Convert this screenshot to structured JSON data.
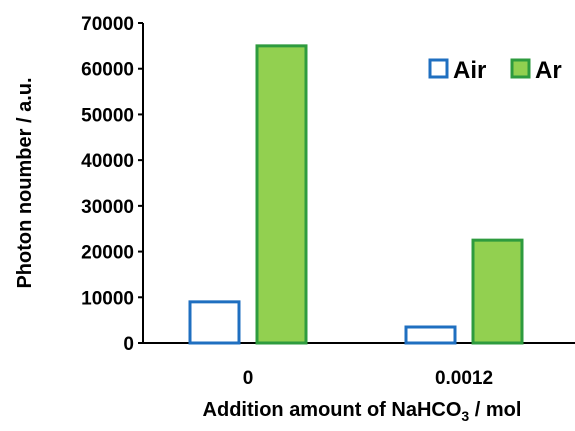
{
  "chart_data": {
    "type": "bar",
    "title": "",
    "xlabel": {
      "prefix": "Addition amount of  NaHCO",
      "subscript": "3",
      "suffix": " / mol"
    },
    "ylabel": "Photon noumber / a.u.",
    "categories": [
      "0",
      "0.0012"
    ],
    "series": [
      {
        "name": "Air",
        "values": [
          9000,
          3500
        ],
        "fill": "#ffffff",
        "stroke": "#1f6fc0"
      },
      {
        "name": "Ar",
        "values": [
          65000,
          22500
        ],
        "fill": "#92d050",
        "stroke": "#2e9b3e"
      }
    ],
    "ylim": [
      0,
      70000
    ],
    "yticks": [
      "0",
      "10000",
      "20000",
      "30000",
      "40000",
      "50000",
      "60000",
      "70000"
    ],
    "grid": false,
    "legend_position": "top-right"
  }
}
